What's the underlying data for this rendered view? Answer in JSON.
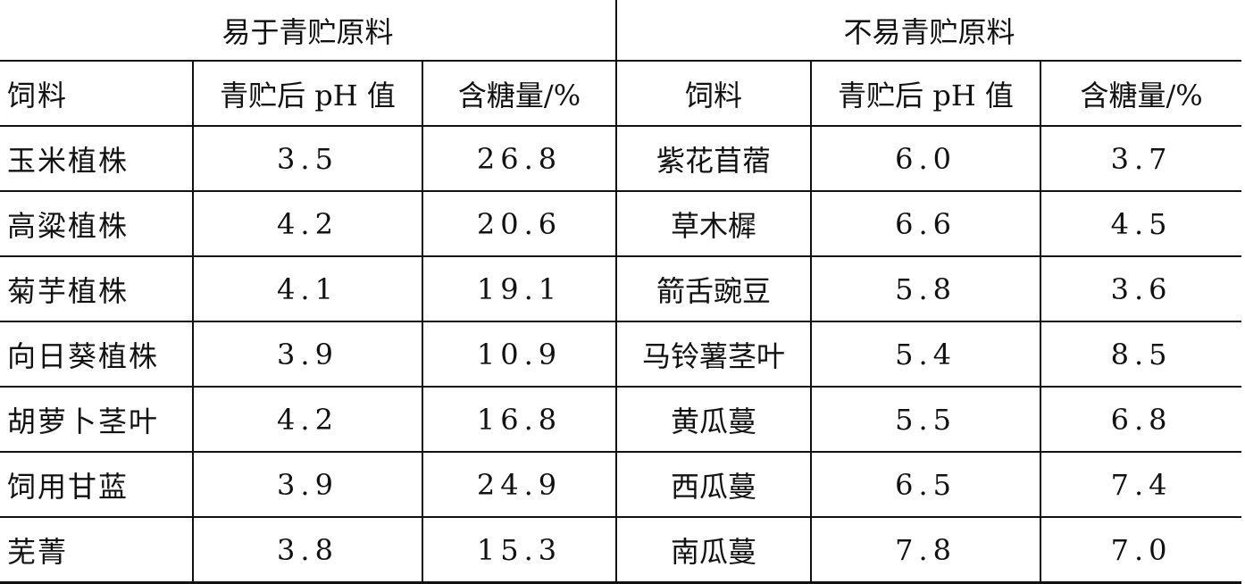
{
  "groups": [
    "易于青贮原料",
    "不易青贮原料"
  ],
  "columns": [
    "饲料",
    "青贮后 pH 值",
    "含糖量/%",
    "饲料",
    "青贮后 pH 值",
    "含糖量/%"
  ],
  "rows": [
    [
      "玉米植株",
      "3.5",
      "26.8",
      "紫花苜蓿",
      "6.0",
      "3.7"
    ],
    [
      "高粱植株",
      "4.2",
      "20.6",
      "草木樨",
      "6.6",
      "4.5"
    ],
    [
      "菊芋植株",
      "4.1",
      "19.1",
      "箭舌豌豆",
      "5.8",
      "3.6"
    ],
    [
      "向日葵植株",
      "3.9",
      "10.9",
      "马铃薯茎叶",
      "5.4",
      "8.5"
    ],
    [
      "胡萝卜茎叶",
      "4.2",
      "16.8",
      "黄瓜蔓",
      "5.5",
      "6.8"
    ],
    [
      "饲用甘蓝",
      "3.9",
      "24.9",
      "西瓜蔓",
      "6.5",
      "7.4"
    ],
    [
      "芜菁",
      "3.8",
      "15.3",
      "南瓜蔓",
      "7.8",
      "7.0"
    ]
  ]
}
